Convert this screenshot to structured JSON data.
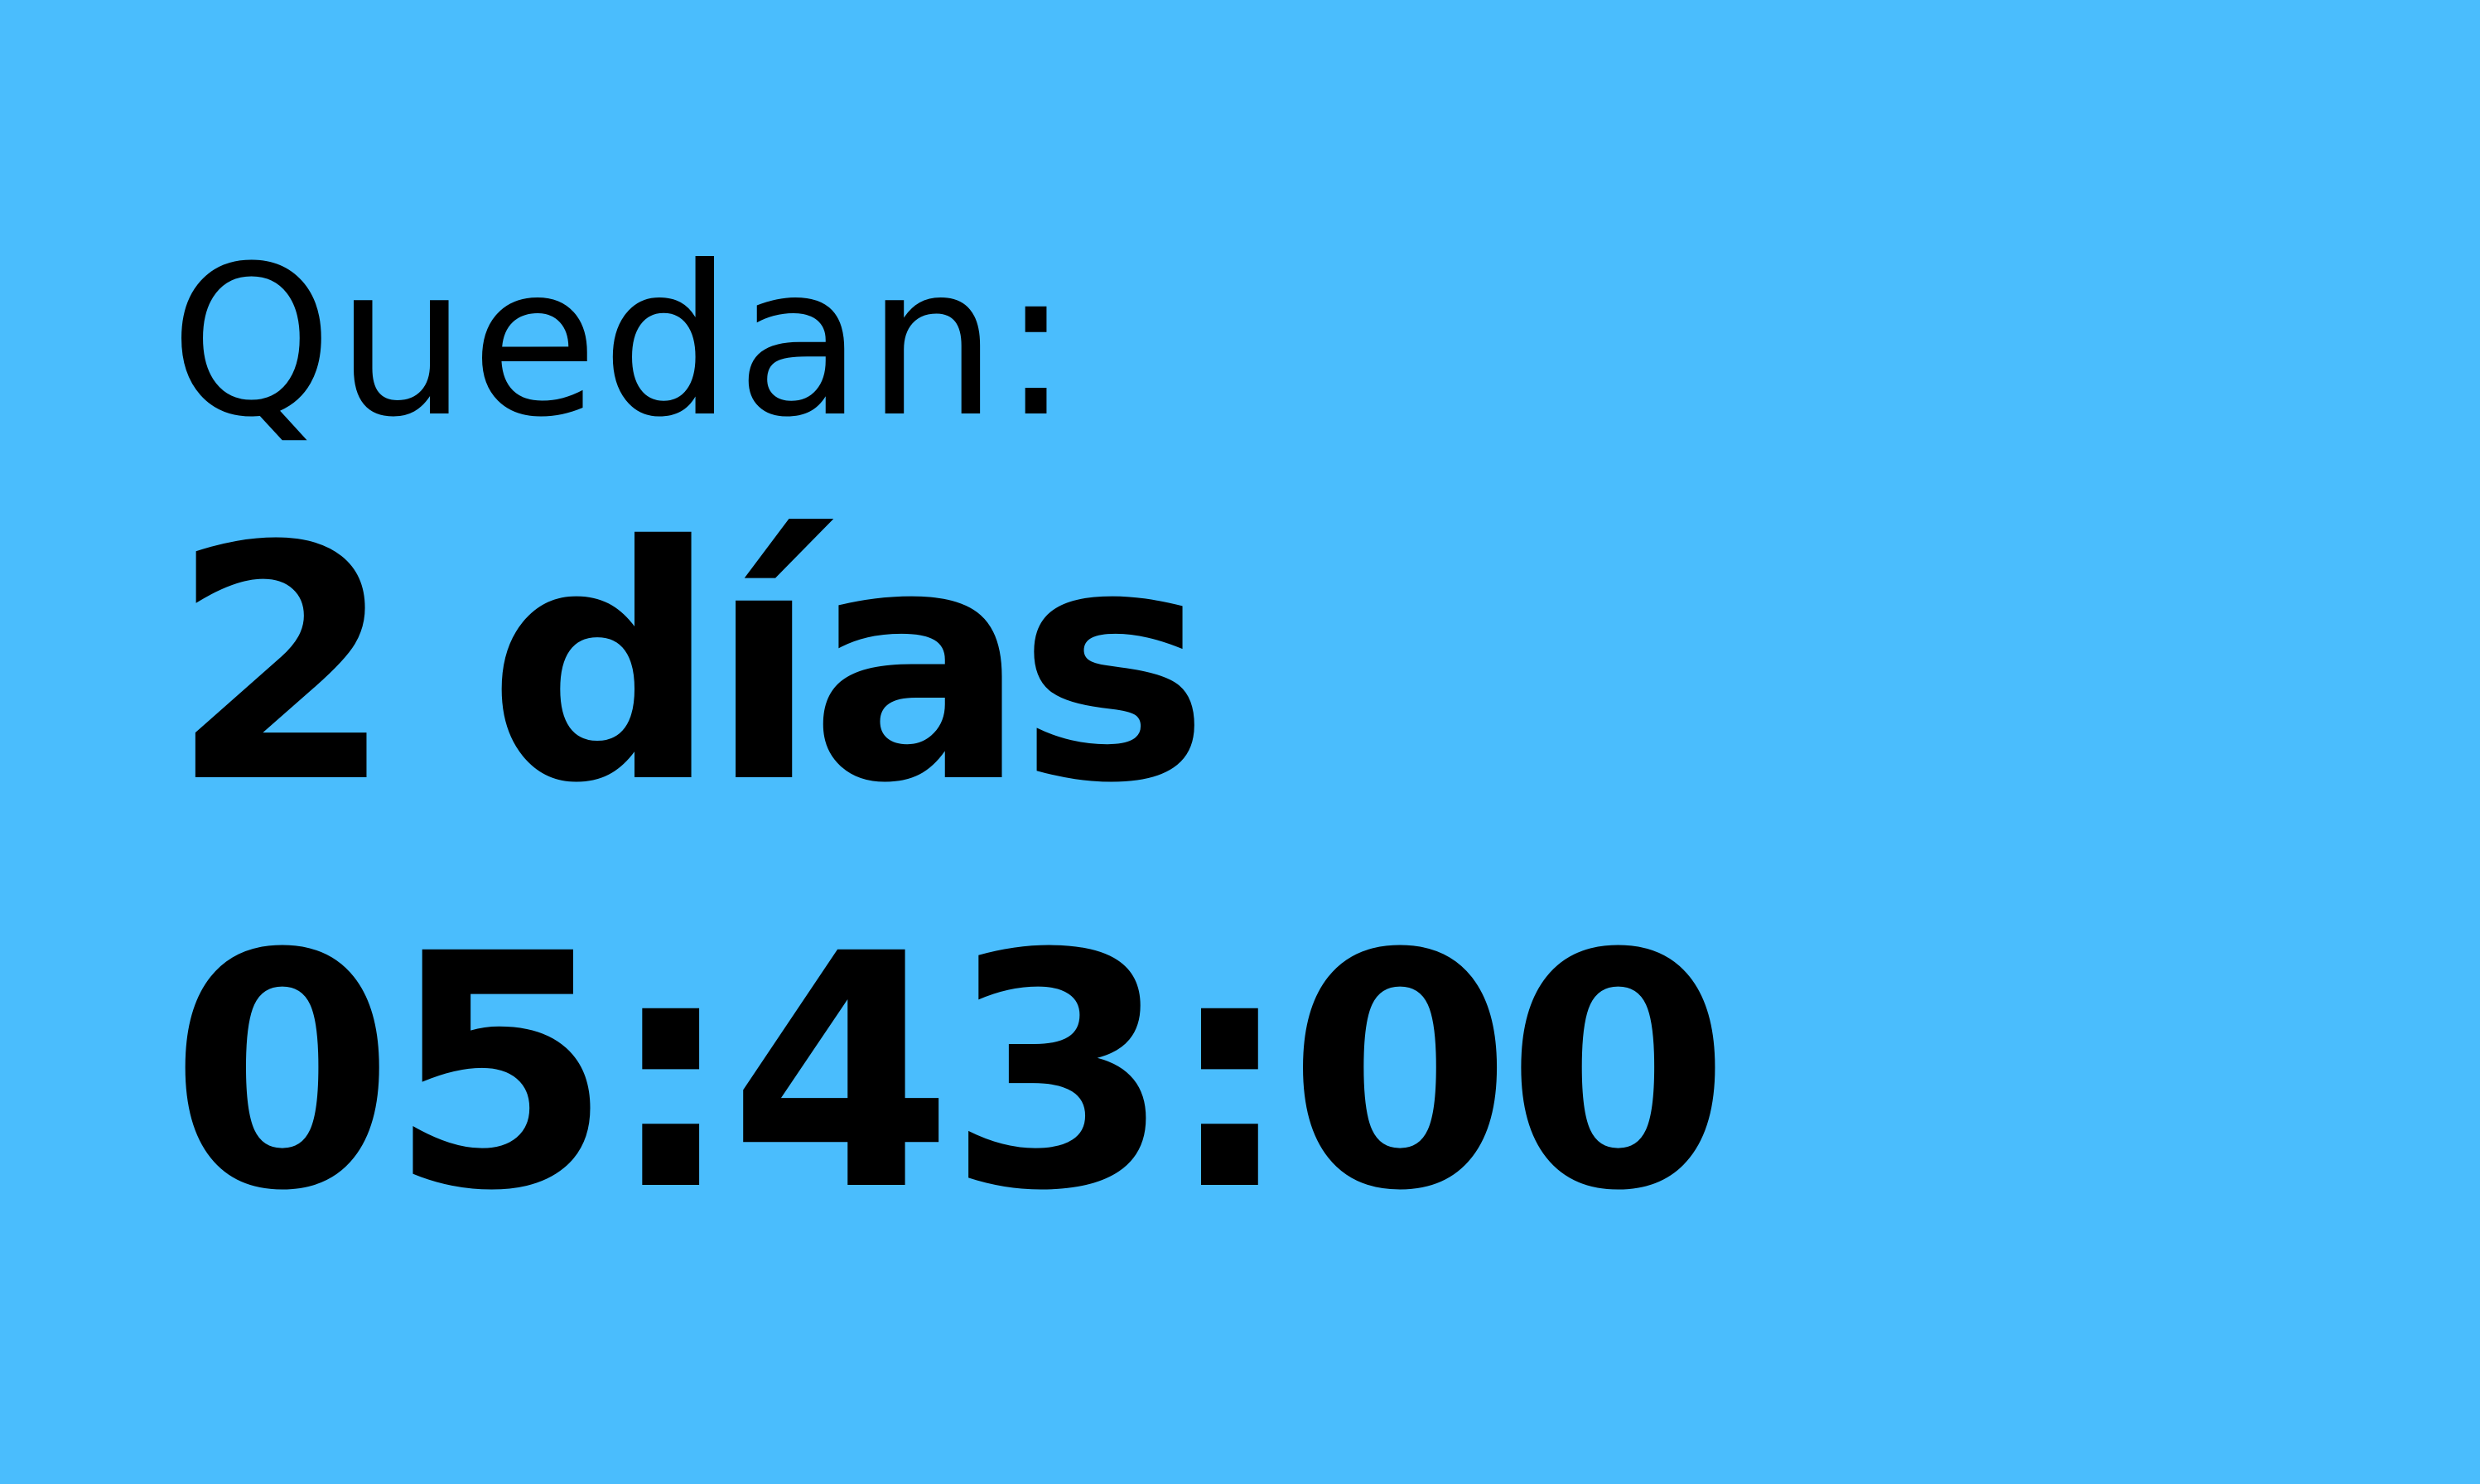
{
  "countdown": {
    "label": "Quedan:",
    "days": "2 días",
    "time": "05:43:00"
  },
  "colors": {
    "background": "#4abdfd",
    "text": "#000000"
  }
}
